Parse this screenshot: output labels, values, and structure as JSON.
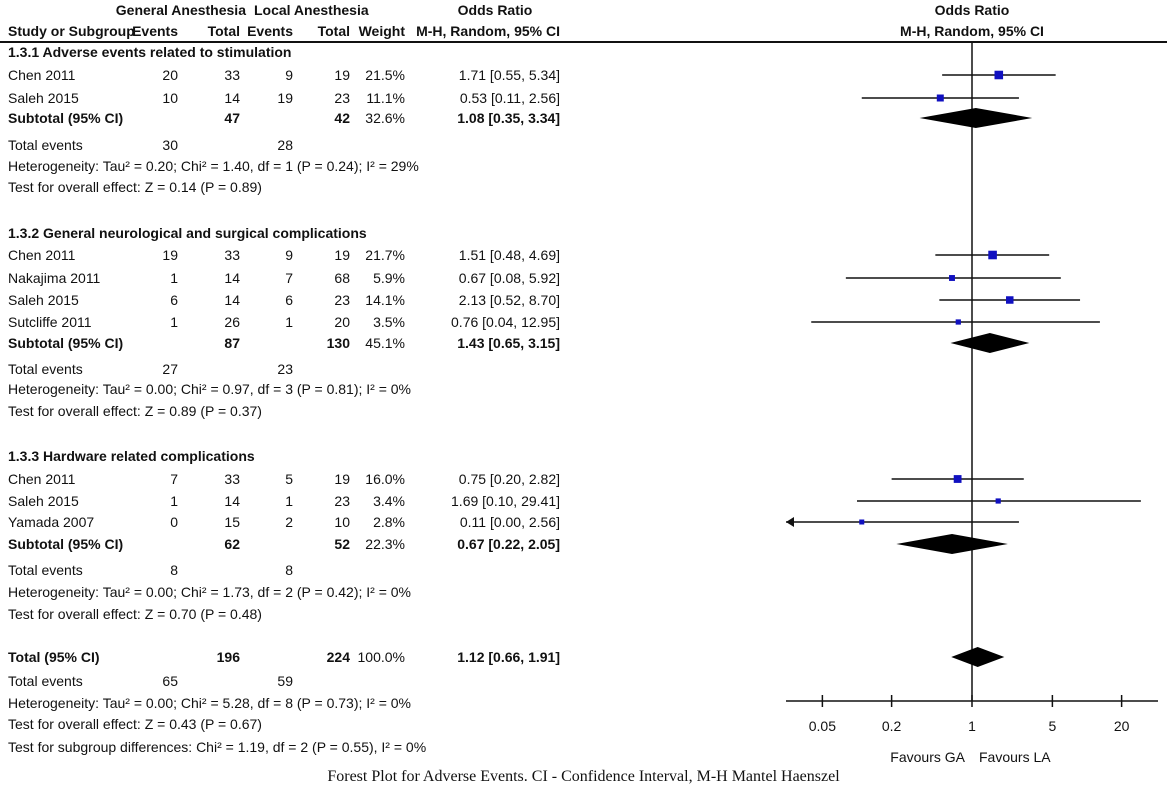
{
  "header": {
    "group_ga": "General Anesthesia",
    "group_la": "Local Anesthesia",
    "or_title": "Odds Ratio",
    "study_col": "Study or Subgroup",
    "ga_events": "Events",
    "ga_total": "Total",
    "la_events": "Events",
    "la_total": "Total",
    "weight": "Weight",
    "or_method": "M-H, Random, 95% CI",
    "plot_title": "Odds Ratio",
    "plot_method": "M-H, Random, 95% CI"
  },
  "rows": [
    {
      "type": "heading",
      "label": "1.3.1 Adverse events related to stimulation"
    },
    {
      "type": "study",
      "label": "Chen 2011",
      "ga_e": "20",
      "ga_t": "33",
      "la_e": "9",
      "la_t": "19",
      "w": "21.5%",
      "ci": "1.71 [0.55, 5.34]"
    },
    {
      "type": "study",
      "label": "Saleh 2015",
      "ga_e": "10",
      "ga_t": "14",
      "la_e": "19",
      "la_t": "23",
      "w": "11.1%",
      "ci": "0.53 [0.11, 2.56]"
    },
    {
      "type": "subtotal",
      "label": "Subtotal (95% CI)",
      "ga_t": "47",
      "la_t": "42",
      "w": "32.6%",
      "ci": "1.08 [0.35, 3.34]"
    },
    {
      "type": "events",
      "label": "Total events",
      "ga_e": "30",
      "la_e": "28"
    },
    {
      "type": "text",
      "label": "Heterogeneity: Tau² = 0.20; Chi² = 1.40, df = 1 (P = 0.24); I² = 29%"
    },
    {
      "type": "text",
      "label": "Test for overall effect: Z = 0.14 (P = 0.89)"
    },
    {
      "type": "heading",
      "label": "1.3.2 General neurological and surgical complications"
    },
    {
      "type": "study",
      "label": "Chen 2011",
      "ga_e": "19",
      "ga_t": "33",
      "la_e": "9",
      "la_t": "19",
      "w": "21.7%",
      "ci": "1.51 [0.48, 4.69]"
    },
    {
      "type": "study",
      "label": "Nakajima 2011",
      "ga_e": "1",
      "ga_t": "14",
      "la_e": "7",
      "la_t": "68",
      "w": "5.9%",
      "ci": "0.67 [0.08, 5.92]"
    },
    {
      "type": "study",
      "label": "Saleh 2015",
      "ga_e": "6",
      "ga_t": "14",
      "la_e": "6",
      "la_t": "23",
      "w": "14.1%",
      "ci": "2.13 [0.52, 8.70]"
    },
    {
      "type": "study",
      "label": "Sutcliffe 2011",
      "ga_e": "1",
      "ga_t": "26",
      "la_e": "1",
      "la_t": "20",
      "w": "3.5%",
      "ci": "0.76 [0.04, 12.95]"
    },
    {
      "type": "subtotal",
      "label": "Subtotal (95% CI)",
      "ga_t": "87",
      "la_t": "130",
      "w": "45.1%",
      "ci": "1.43 [0.65, 3.15]"
    },
    {
      "type": "events",
      "label": "Total events",
      "ga_e": "27",
      "la_e": "23"
    },
    {
      "type": "text",
      "label": "Heterogeneity: Tau² = 0.00; Chi² = 0.97, df = 3 (P = 0.81); I² = 0%"
    },
    {
      "type": "text",
      "label": "Test for overall effect: Z = 0.89 (P = 0.37)"
    },
    {
      "type": "heading",
      "label": "1.3.3 Hardware related complications"
    },
    {
      "type": "study",
      "label": "Chen 2011",
      "ga_e": "7",
      "ga_t": "33",
      "la_e": "5",
      "la_t": "19",
      "w": "16.0%",
      "ci": "0.75 [0.20, 2.82]"
    },
    {
      "type": "study",
      "label": "Saleh 2015",
      "ga_e": "1",
      "ga_t": "14",
      "la_e": "1",
      "la_t": "23",
      "w": "3.4%",
      "ci": "1.69 [0.10, 29.41]"
    },
    {
      "type": "study",
      "label": "Yamada 2007",
      "ga_e": "0",
      "ga_t": "15",
      "la_e": "2",
      "la_t": "10",
      "w": "2.8%",
      "ci": "0.11 [0.00, 2.56]"
    },
    {
      "type": "subtotal",
      "label": "Subtotal (95% CI)",
      "ga_t": "62",
      "la_t": "52",
      "w": "22.3%",
      "ci": "0.67 [0.22, 2.05]"
    },
    {
      "type": "events",
      "label": "Total events",
      "ga_e": "8",
      "la_e": "8"
    },
    {
      "type": "text",
      "label": "Heterogeneity: Tau² = 0.00; Chi² = 1.73, df = 2 (P = 0.42); I² = 0%"
    },
    {
      "type": "text",
      "label": "Test for overall effect: Z = 0.70 (P = 0.48)"
    },
    {
      "type": "subtotal",
      "label": "Total (95% CI)",
      "ga_t": "196",
      "la_t": "224",
      "w": "100.0%",
      "ci": "1.12 [0.66, 1.91]"
    },
    {
      "type": "events",
      "label": "Total events",
      "ga_e": "65",
      "la_e": "59"
    },
    {
      "type": "text",
      "label": "Heterogeneity: Tau² = 0.00; Chi² = 5.28, df = 8 (P = 0.73); I² = 0%"
    },
    {
      "type": "text",
      "label": "Test for overall effect: Z = 0.43 (P = 0.67)"
    },
    {
      "type": "text",
      "label": "Test for subgroup differences: Chi² = 1.19, df = 2 (P = 0.55), I² = 0%"
    }
  ],
  "chart_data": {
    "type": "forest",
    "title": "Odds Ratio",
    "subtitle": "M-H, Random, 95% CI",
    "xscale": "log",
    "xlim": [
      0.024,
      41
    ],
    "ticks": [
      0.05,
      0.2,
      1,
      5,
      20
    ],
    "tick_labels": [
      "0.05",
      "0.2",
      "1",
      "5",
      "20"
    ],
    "xlabel_left": "Favours GA",
    "xlabel_right": "Favours LA",
    "points": [
      {
        "row": 1,
        "kind": "study",
        "or": 1.71,
        "lo": 0.55,
        "hi": 5.34,
        "weight": 21.5
      },
      {
        "row": 2,
        "kind": "study",
        "or": 0.53,
        "lo": 0.11,
        "hi": 2.56,
        "weight": 11.1
      },
      {
        "row": 3,
        "kind": "diamond",
        "or": 1.08,
        "lo": 0.35,
        "hi": 3.34
      },
      {
        "row": 8,
        "kind": "study",
        "or": 1.51,
        "lo": 0.48,
        "hi": 4.69,
        "weight": 21.7
      },
      {
        "row": 9,
        "kind": "study",
        "or": 0.67,
        "lo": 0.08,
        "hi": 5.92,
        "weight": 5.9
      },
      {
        "row": 10,
        "kind": "study",
        "or": 2.13,
        "lo": 0.52,
        "hi": 8.7,
        "weight": 14.1
      },
      {
        "row": 11,
        "kind": "study",
        "or": 0.76,
        "lo": 0.04,
        "hi": 12.95,
        "weight": 3.5
      },
      {
        "row": 12,
        "kind": "diamond",
        "or": 1.43,
        "lo": 0.65,
        "hi": 3.15
      },
      {
        "row": 17,
        "kind": "study",
        "or": 0.75,
        "lo": 0.2,
        "hi": 2.82,
        "weight": 16.0
      },
      {
        "row": 18,
        "kind": "study",
        "or": 1.69,
        "lo": 0.1,
        "hi": 29.41,
        "weight": 3.4
      },
      {
        "row": 19,
        "kind": "study",
        "or": 0.11,
        "lo": 0.0,
        "hi": 2.56,
        "weight": 2.8
      },
      {
        "row": 20,
        "kind": "diamond",
        "or": 0.67,
        "lo": 0.22,
        "hi": 2.05
      },
      {
        "row": 24,
        "kind": "diamond",
        "or": 1.12,
        "lo": 0.66,
        "hi": 1.91
      }
    ],
    "colors": {
      "square": "#1010c0",
      "diamond": "#000000",
      "line": "#111111"
    }
  },
  "caption": "Forest Plot for Adverse Events. CI - Confidence Interval, M-H Mantel Haenszel"
}
